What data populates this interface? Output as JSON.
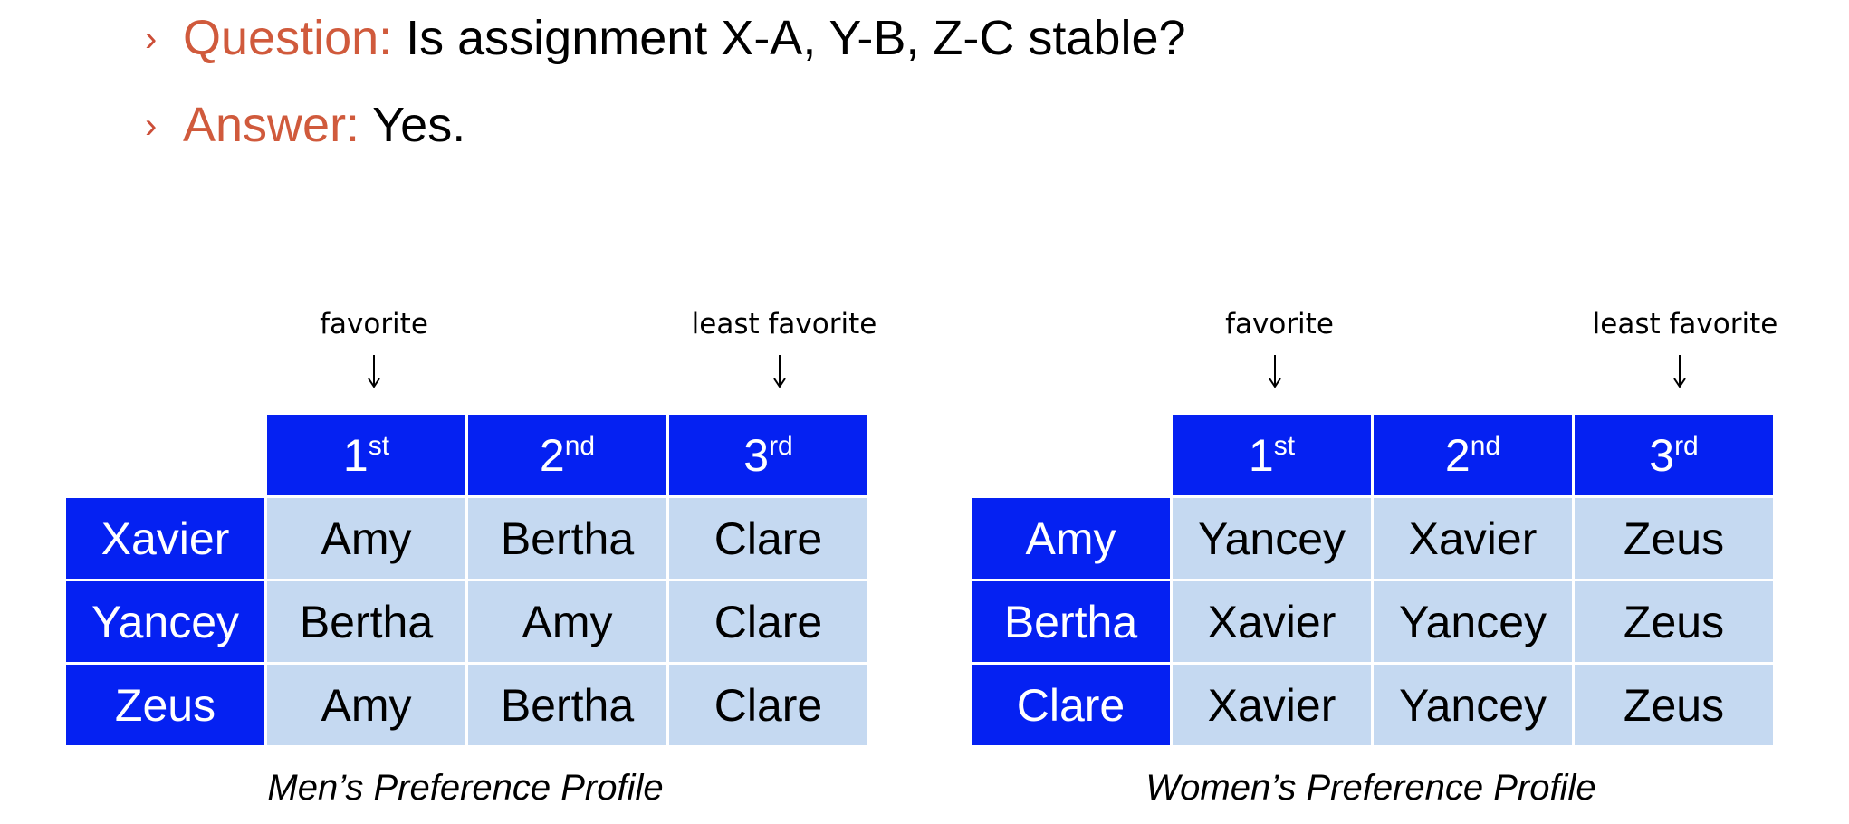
{
  "bullets": [
    {
      "marker": "›",
      "label": "Question:",
      "text": " Is assignment X-A, Y-B, Z-C stable?"
    },
    {
      "marker": "›",
      "label": "Answer:",
      "text": " Yes."
    }
  ],
  "annotations": {
    "favorite": "favorite",
    "least_favorite": "least favorite"
  },
  "columns": [
    {
      "num": "1",
      "suffix": "st"
    },
    {
      "num": "2",
      "suffix": "nd"
    },
    {
      "num": "3",
      "suffix": "rd"
    }
  ],
  "men": {
    "caption": "Men’s Preference Profile",
    "rows": [
      {
        "name": "Xavier",
        "prefs": [
          "Amy",
          "Bertha",
          "Clare"
        ]
      },
      {
        "name": "Yancey",
        "prefs": [
          "Bertha",
          "Amy",
          "Clare"
        ]
      },
      {
        "name": "Zeus",
        "prefs": [
          "Amy",
          "Bertha",
          "Clare"
        ]
      }
    ]
  },
  "women": {
    "caption": "Women’s Preference Profile",
    "rows": [
      {
        "name": "Amy",
        "prefs": [
          "Yancey",
          "Xavier",
          "Zeus"
        ]
      },
      {
        "name": "Bertha",
        "prefs": [
          "Xavier",
          "Yancey",
          "Zeus"
        ]
      },
      {
        "name": "Clare",
        "prefs": [
          "Xavier",
          "Yancey",
          "Zeus"
        ]
      }
    ]
  },
  "colors": {
    "accent_label": "#d05a3c",
    "header_blue": "#0521f2",
    "cell_lightblue": "#c5d9f1"
  }
}
